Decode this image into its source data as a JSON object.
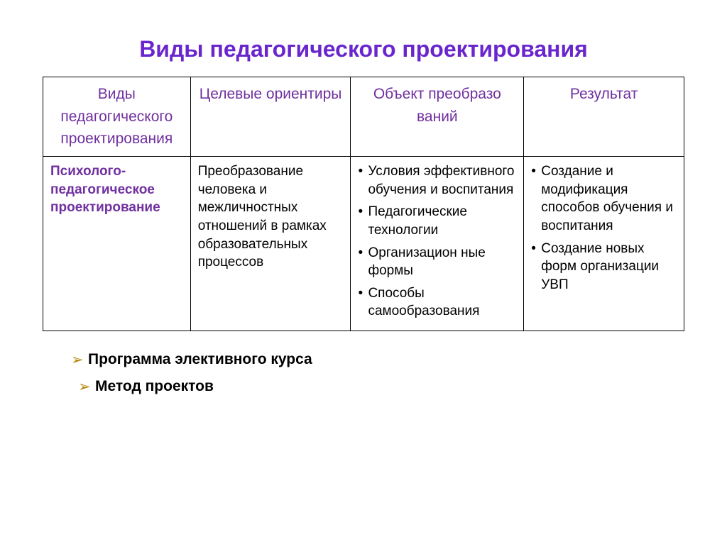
{
  "colors": {
    "title": "#6a26cd",
    "header_text": "#7030a0",
    "row_label": "#7030a0",
    "footer_bullet": "#b8860b",
    "footer_text": "#000000"
  },
  "title": "Виды педагогического проектирования",
  "table": {
    "headers": [
      "Виды педагогического проектирования",
      "Целевые ориентиры",
      "Объект преобразо\nваний",
      "Результат"
    ],
    "row": {
      "label": "Психолого-педагогическое проектирование",
      "col2": "Преобразование человека и межличностных отношений в рамках образовательных процессов",
      "col3": [
        "Условия эффективного обучения и воспитания",
        "Педагогические технологии",
        "Организацион ные формы",
        "Способы самообразования"
      ],
      "col4": [
        "Создание и модификация способов обучения и воспитания",
        "Создание новых форм организации УВП"
      ]
    }
  },
  "footer": [
    "Программа элективного курса",
    "Метод проектов"
  ]
}
